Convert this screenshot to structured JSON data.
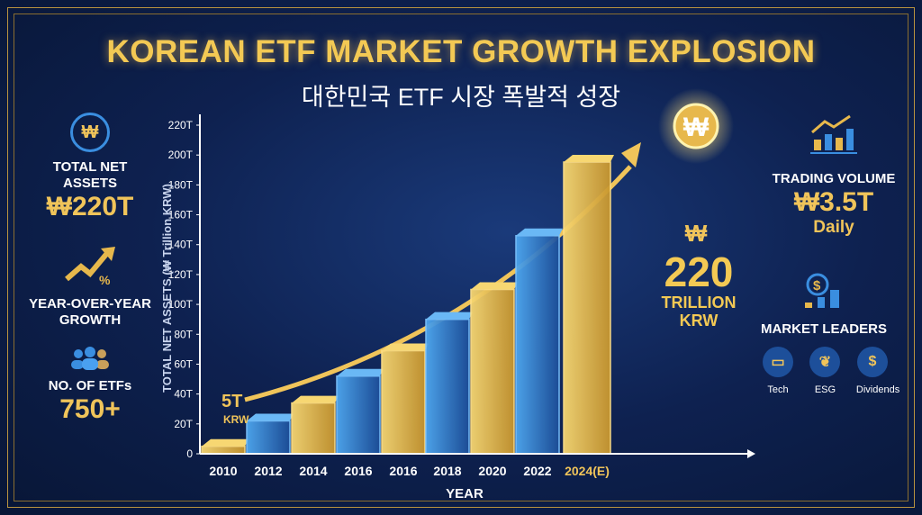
{
  "header": {
    "title": "KOREAN ETF MARKET GROWTH EXPLOSION",
    "subtitle": "대한민국 ETF 시장 폭발적 성장"
  },
  "left_panel": {
    "total_net_assets": {
      "label": "TOTAL NET ASSETS",
      "value": "₩220T",
      "icon": "won-coin-icon"
    },
    "yoy_growth": {
      "label_line1": "YEAR-OVER-YEAR",
      "label_line2": "GROWTH",
      "icon": "trend-up-percent-icon"
    },
    "etf_count": {
      "label": "NO. OF ETFs",
      "value": "750+",
      "icon": "people-icon"
    }
  },
  "right_panel": {
    "trading_volume": {
      "label": "TRADING VOLUME",
      "value": "₩3.5T",
      "sub": "Daily",
      "icon": "bar-chart-arrow-icon"
    },
    "market_leaders": {
      "label": "MARKET LEADERS",
      "icon": "dollar-bars-icon",
      "items": [
        {
          "label": "Tech",
          "icon": "laptop-icon"
        },
        {
          "label": "ESG",
          "icon": "leaf-icon"
        },
        {
          "label": "Dividends",
          "icon": "hand-dollar-icon"
        }
      ]
    }
  },
  "colors": {
    "background": "#0e2150",
    "gold": "#f0c45a",
    "blue": "#3a8ee0"
  },
  "chart_data": {
    "type": "bar",
    "title": "",
    "xlabel": "YEAR",
    "ylabel": "TOTAL NET ASSETS (₩ Trillion KRW)",
    "ylim": [
      0,
      220
    ],
    "yticks": [
      "0",
      "20T",
      "40T",
      "60T",
      "80T",
      "100T",
      "120T",
      "140T",
      "160T",
      "180T",
      "200T",
      "220T"
    ],
    "categories": [
      "2010",
      "2012",
      "2014",
      "2016",
      "2016",
      "2018",
      "2020",
      "2022",
      "2024(E)"
    ],
    "values": [
      5,
      22,
      34,
      52,
      69,
      90,
      110,
      146,
      220
    ],
    "bar_colors": [
      "gold",
      "blue",
      "gold",
      "blue",
      "gold",
      "blue",
      "gold",
      "blue",
      "gold"
    ],
    "annotations": {
      "first": {
        "value": "5T",
        "unit": "KRW"
      },
      "last": {
        "symbol": "₩",
        "value": "220",
        "unit_line1": "TRILLION",
        "unit_line2": "KRW"
      }
    },
    "grid": false
  }
}
